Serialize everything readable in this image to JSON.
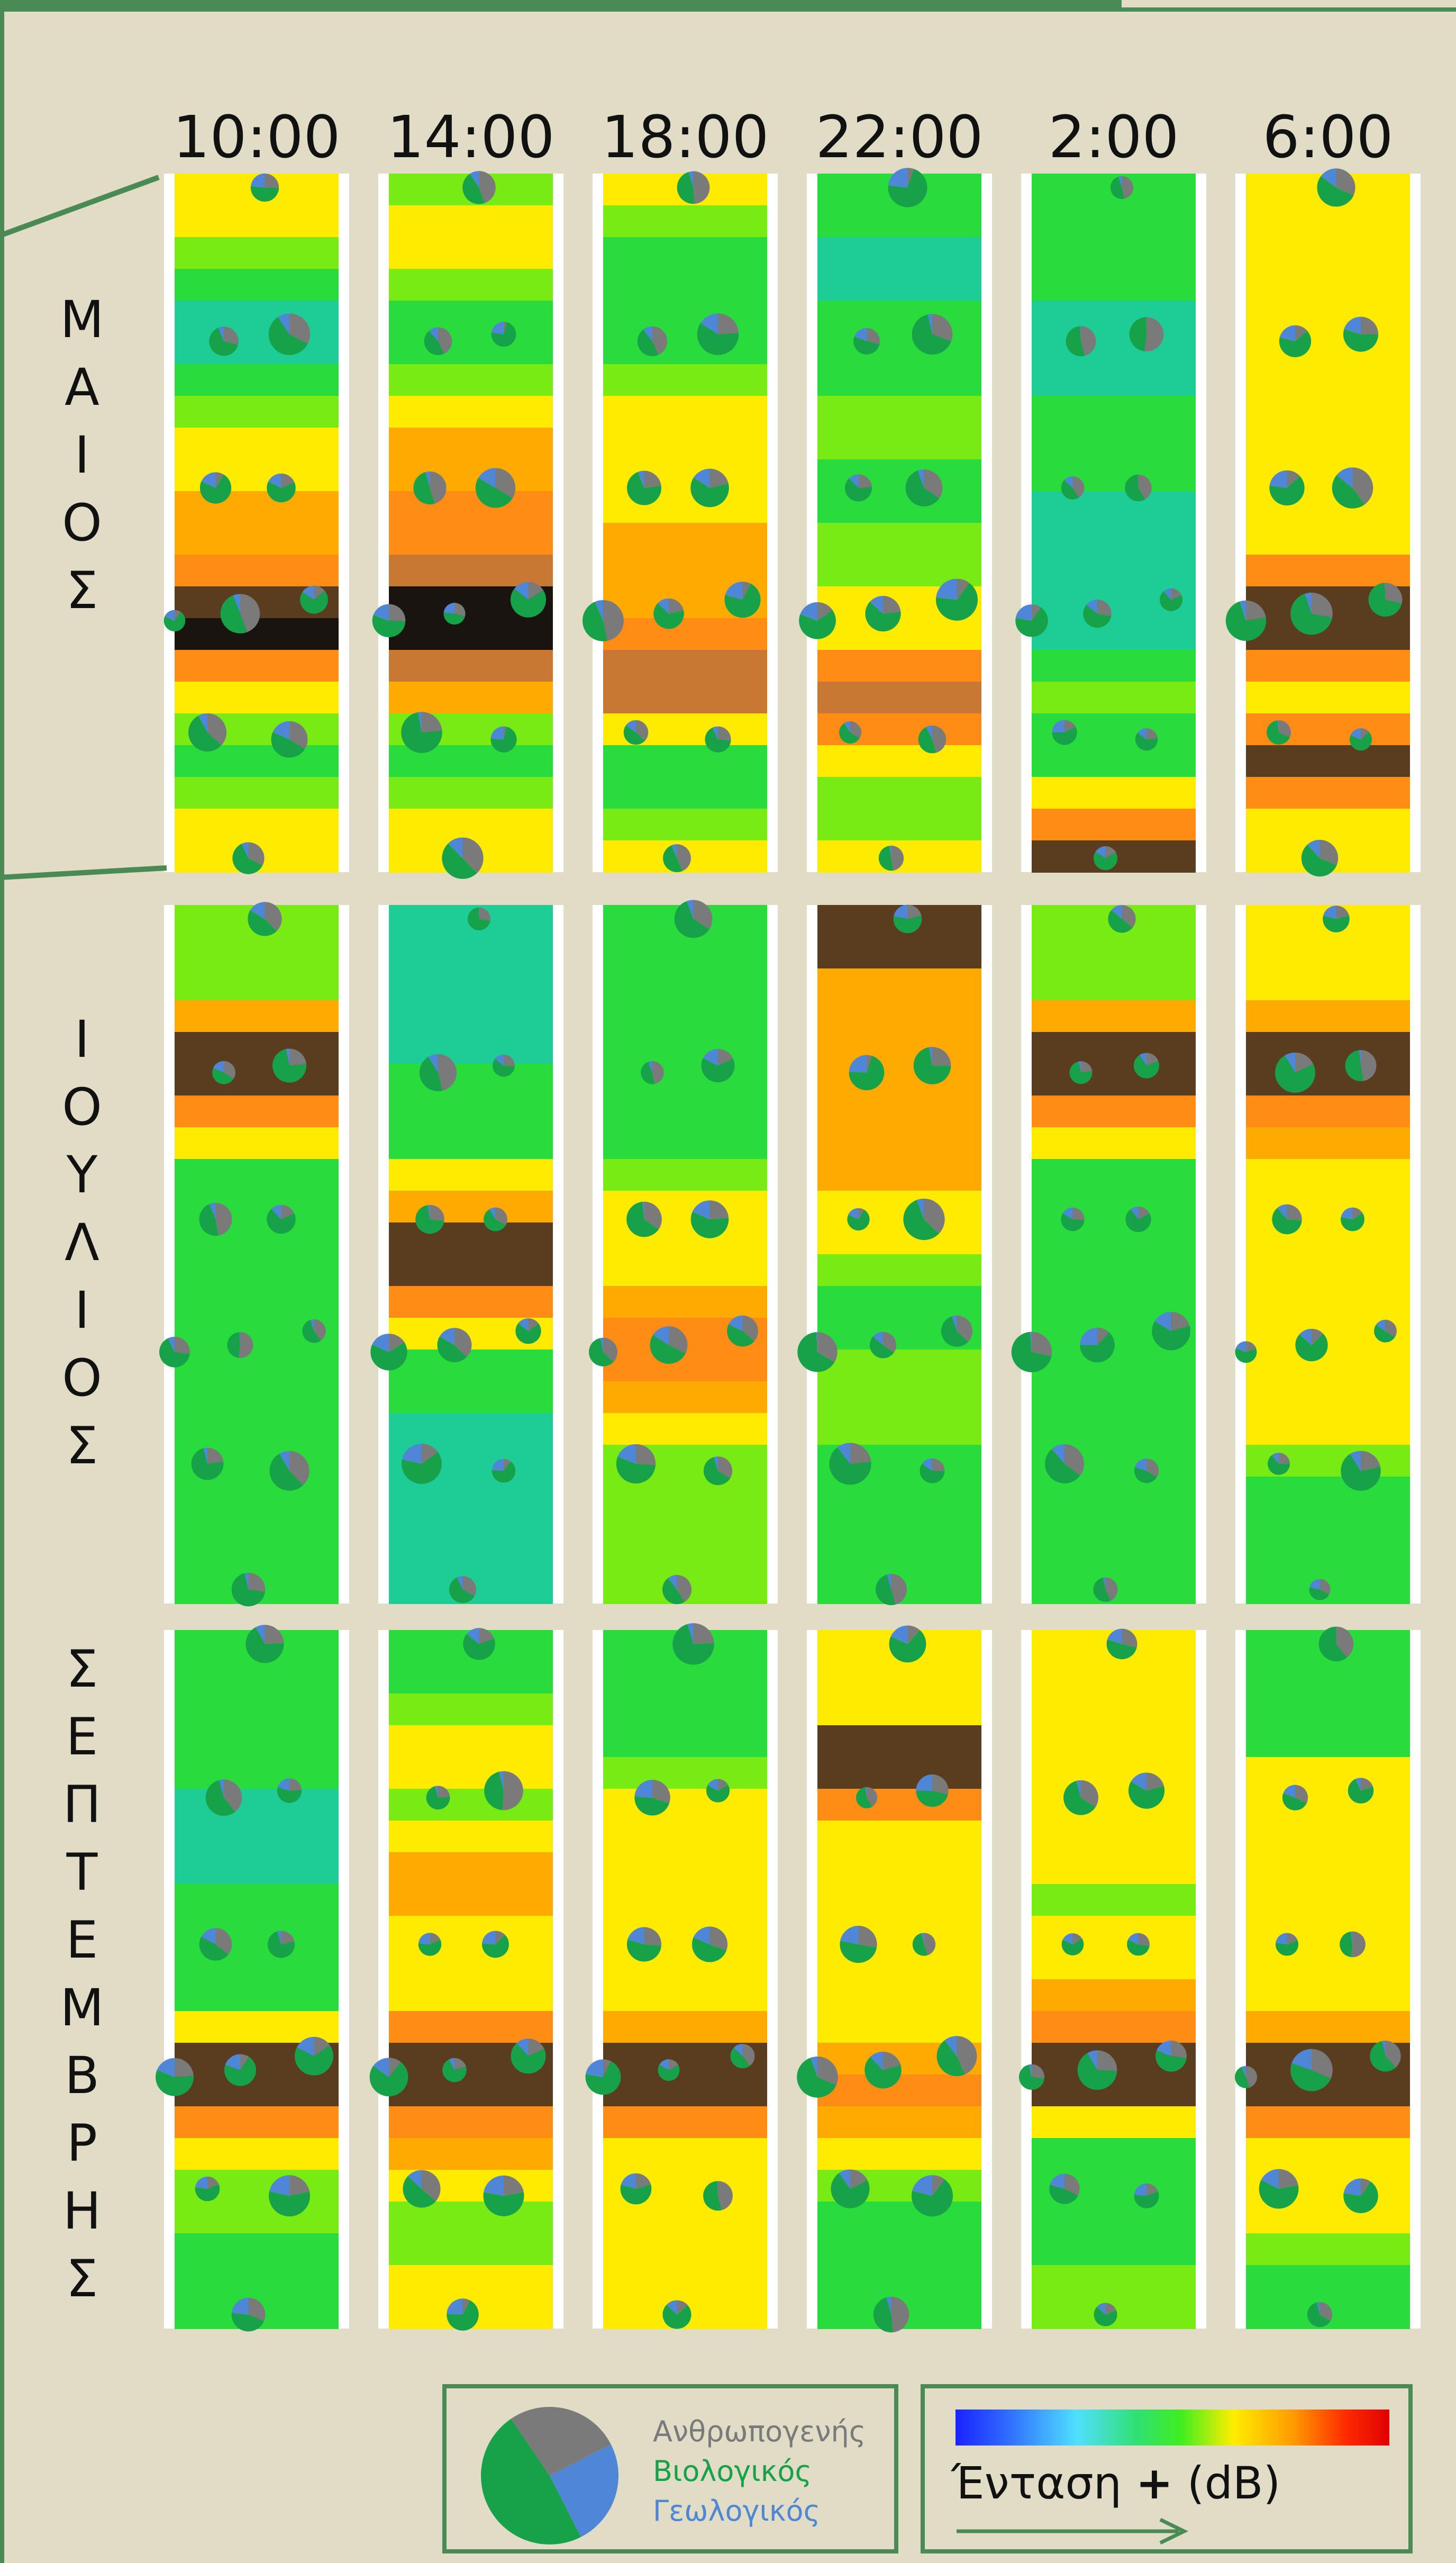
{
  "times": [
    "10:00",
    "14:00",
    "18:00",
    "22:00",
    "2:00",
    "6:00"
  ],
  "months": [
    {
      "name": "ΜΑΙΟΣ",
      "letters": [
        "Μ",
        "Α",
        "Ι",
        "Ο",
        "Σ"
      ]
    },
    {
      "name": "ΙΟΥΛΙΟΣ",
      "letters": [
        "Ι",
        "Ο",
        "Υ",
        "Λ",
        "Ι",
        "Ο",
        "Σ"
      ]
    },
    {
      "name": "ΣΕΠΤΕΜΒΡΗΣ",
      "letters": [
        "Σ",
        "Ε",
        "Π",
        "Τ",
        "Ε",
        "Μ",
        "Β",
        "Ρ",
        "Η",
        "Σ"
      ]
    }
  ],
  "legend": {
    "categories": [
      {
        "label": "Ανθρωπογενής",
        "color": "#7a7a7a",
        "value": 0.27
      },
      {
        "label": "Βιολογικός",
        "color": "#17a24a",
        "value": 0.48
      },
      {
        "label": "Γεωλογικός",
        "color": "#4f86d6",
        "value": 0.25
      }
    ],
    "intensity_label_pre": "Ένταση ",
    "intensity_label_plus": "+",
    "intensity_label_post": " (dB)"
  },
  "chart_data": {
    "type": "heatmap",
    "columns": [
      "10:00",
      "14:00",
      "18:00",
      "22:00",
      "2:00",
      "6:00"
    ],
    "rows": [
      "ΜΑΙΟΣ",
      "ΙΟΥΛΙΟΣ",
      "ΣΕΠΤΕΜΒΡΗΣ"
    ],
    "colorbar": {
      "label": "Ένταση + (dB)",
      "colors": [
        "#1a22ff",
        "#4fe0ff",
        "#30e070",
        "#ffee00",
        "#ff9900",
        "#e00000"
      ]
    },
    "note_categories": [
      "Ανθρωπογενής",
      "Βιολογικός",
      "Γεωλογικός"
    ],
    "panels": [
      [
        [
          3,
          3,
          2.5,
          2,
          1.5,
          1.5,
          2,
          2.5,
          3,
          3,
          3.5,
          3.5,
          4,
          5,
          5.5,
          4,
          3,
          2.5,
          2,
          2.5,
          3,
          3
        ],
        [
          2.5,
          3,
          3,
          2.5,
          2,
          2,
          2.5,
          3,
          3.5,
          3.5,
          4,
          4,
          4.5,
          5.5,
          5.5,
          4.5,
          3.5,
          2.5,
          2,
          2.5,
          3,
          3
        ],
        [
          3,
          2.5,
          2,
          2,
          2,
          2,
          2.5,
          3,
          3,
          3,
          3,
          3.5,
          3.5,
          3.5,
          4,
          4.5,
          4.5,
          3,
          2,
          2,
          2.5,
          3
        ],
        [
          2,
          2,
          1.5,
          1.5,
          2,
          2,
          2,
          2.5,
          2.5,
          2,
          2,
          2.5,
          2.5,
          3,
          3,
          4,
          4.5,
          4,
          3,
          2.5,
          2.5,
          3
        ],
        [
          2,
          2,
          2,
          2,
          1.5,
          1.5,
          1.5,
          2,
          2,
          2,
          1.5,
          1.5,
          1.5,
          1.5,
          1.5,
          2,
          2.5,
          2,
          2,
          3,
          4,
          5
        ],
        [
          3,
          3,
          3,
          3,
          3,
          3,
          3,
          3,
          3,
          3,
          3,
          3,
          4,
          5,
          5,
          4,
          3,
          4,
          5,
          4,
          3,
          3
        ]
      ],
      [
        [
          2.5,
          2.5,
          2.5,
          3.5,
          5,
          5,
          4,
          3,
          2,
          2,
          2,
          2,
          2,
          2,
          2,
          2,
          2,
          2,
          2,
          2,
          2,
          2
        ],
        [
          1.5,
          1.5,
          1.5,
          1.5,
          1.5,
          2,
          2,
          2,
          3,
          3.5,
          5,
          5,
          4,
          3,
          2,
          2,
          1.5,
          1.5,
          1.5,
          1.5,
          1.5,
          1.5
        ],
        [
          2,
          2,
          2,
          2,
          2,
          2,
          2,
          2,
          2.5,
          3,
          3,
          3,
          3.5,
          4,
          4,
          3.5,
          3,
          2.5,
          2.5,
          2.5,
          2.5,
          2.5
        ],
        [
          5,
          5,
          3.5,
          3.5,
          3.5,
          3.5,
          3.5,
          3.5,
          3.5,
          3,
          3,
          2.5,
          2,
          2,
          2.5,
          2.5,
          2.5,
          2,
          2,
          2,
          2,
          2
        ],
        [
          2.5,
          2.5,
          2.5,
          3.5,
          5,
          5,
          4,
          3,
          2,
          2,
          2,
          2,
          2,
          2,
          2,
          2,
          2,
          2,
          2,
          2,
          2,
          2
        ],
        [
          3,
          3,
          3,
          3.5,
          5,
          5,
          4,
          3.5,
          3,
          3,
          3,
          3,
          3,
          3,
          3,
          3,
          3,
          2.5,
          2,
          2,
          2,
          2
        ]
      ],
      [
        [
          2,
          2,
          2,
          2,
          2,
          1.5,
          1.5,
          1.5,
          2,
          2,
          2,
          2,
          3,
          5,
          5,
          4,
          3,
          2.5,
          2.5,
          2,
          2,
          2
        ],
        [
          2,
          2,
          2.5,
          3,
          3,
          2.5,
          3,
          3.5,
          3.5,
          3,
          3,
          3,
          4,
          5,
          5,
          4,
          3.5,
          3,
          2.5,
          2.5,
          3,
          3
        ],
        [
          2,
          2,
          2,
          2,
          2.5,
          3,
          3,
          3,
          3,
          3,
          3,
          3,
          3.5,
          5,
          5,
          4,
          3,
          3,
          3,
          3,
          3,
          3
        ],
        [
          3,
          3,
          3,
          5,
          5,
          4,
          3,
          3,
          3,
          3,
          3,
          3,
          3,
          3.5,
          4,
          3.5,
          3,
          2.5,
          2,
          2,
          2,
          2
        ],
        [
          3,
          3,
          3,
          3,
          3,
          3,
          3,
          3,
          2.5,
          3,
          3,
          3.5,
          4,
          5,
          5,
          3,
          2,
          2,
          2,
          2,
          2.5,
          2.5
        ],
        [
          2,
          2,
          2,
          2,
          3,
          3,
          3,
          3,
          3,
          3,
          3,
          3,
          3.5,
          5,
          5,
          4,
          3,
          3,
          3,
          2.5,
          2,
          2
        ]
      ]
    ]
  }
}
